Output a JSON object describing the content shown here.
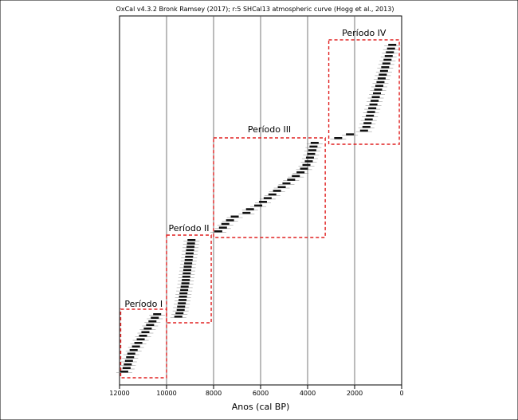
{
  "chart_data": {
    "type": "scatter",
    "title": "OxCal v4.3.2 Bronk Ramsey (2017); r:5 SHCal13 atmospheric curve (Hogg et al., 2013)",
    "xlabel": "Anos (cal BP)",
    "ylabel": "",
    "x_reversed": true,
    "xlim": [
      12000,
      0
    ],
    "x_ticks": [
      12000,
      10000,
      8000,
      6000,
      4000,
      2000,
      0
    ],
    "x_tick_labels": [
      "12000",
      "10000",
      "8000",
      "6000",
      "4000",
      "2000",
      "0"
    ],
    "grid_x": [
      10000,
      8000,
      6000,
      4000,
      2000
    ],
    "annotation_color": "#e02020",
    "periods": [
      {
        "label": "Período I",
        "x_range": [
          11950,
          10000
        ],
        "dates": [
          11800,
          11700,
          11650,
          11600,
          11550,
          11500,
          11400,
          11300,
          11200,
          11100,
          11000,
          10900,
          10800,
          10700,
          10600,
          10500,
          10400
        ]
      },
      {
        "label": "Período II",
        "x_range": [
          10000,
          8100
        ],
        "dates": [
          9500,
          9450,
          9400,
          9380,
          9350,
          9320,
          9300,
          9280,
          9250,
          9230,
          9200,
          9180,
          9160,
          9140,
          9120,
          9100,
          9080,
          9060,
          9040,
          9020,
          9000,
          8980,
          8960,
          8940
        ]
      },
      {
        "label": "Período III",
        "x_range": [
          8000,
          3250
        ],
        "dates": [
          7800,
          7600,
          7500,
          7300,
          7100,
          6600,
          6450,
          6100,
          5900,
          5700,
          5500,
          5300,
          5100,
          4900,
          4700,
          4500,
          4300,
          4150,
          4050,
          3950,
          3900,
          3850,
          3800,
          3750,
          3700
        ]
      },
      {
        "label": "Período IV",
        "x_range": [
          3100,
          100
        ],
        "dates": [
          2700,
          2200,
          1600,
          1500,
          1450,
          1400,
          1350,
          1300,
          1250,
          1200,
          1150,
          1100,
          1050,
          1000,
          950,
          900,
          850,
          800,
          750,
          700,
          650,
          600,
          550,
          500,
          450,
          400
        ]
      }
    ]
  }
}
